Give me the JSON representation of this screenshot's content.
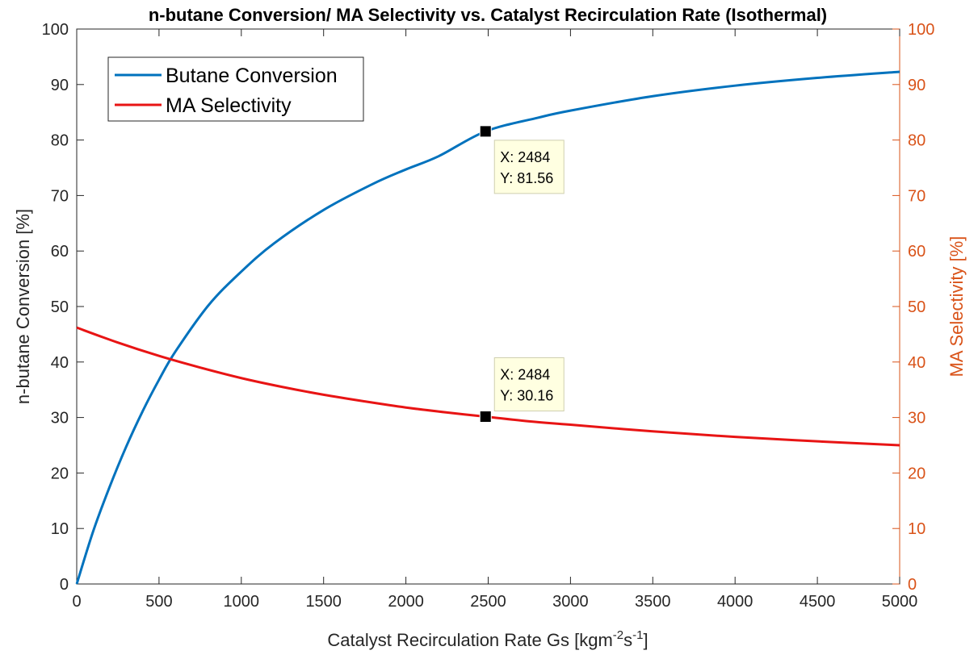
{
  "chart_data": {
    "type": "line",
    "title": "n-butane Conversion/ MA Selectivity vs. Catalyst Recirculation Rate (Isothermal)",
    "xlabel": "Catalyst Recirculation Rate Gs [kgm",
    "xlabel_sup1": "-2",
    "xlabel_mid": "s",
    "xlabel_sup2": "-1",
    "xlabel_end": "]",
    "ylabel_left": "n-butane Conversion [%]",
    "ylabel_right": "MA Selectivity [%]",
    "xlim": [
      0,
      5000
    ],
    "ylim_left": [
      0,
      100
    ],
    "ylim_right": [
      0,
      100
    ],
    "x_ticks": [
      0,
      500,
      1000,
      1500,
      2000,
      2500,
      3000,
      3500,
      4000,
      4500,
      5000
    ],
    "y_ticks": [
      0,
      10,
      20,
      30,
      40,
      50,
      60,
      70,
      80,
      90,
      100
    ],
    "grid": false,
    "legend_position": "top-left",
    "colors": {
      "butane": "#0072BD",
      "selectivity": "#E81414",
      "right_axis": "#D95319"
    },
    "series": [
      {
        "name": "Butane Conversion",
        "axis": "left",
        "x": [
          0,
          100,
          200,
          300,
          400,
          500,
          600,
          800,
          1000,
          1200,
          1500,
          1800,
          2000,
          2200,
          2484,
          2800,
          3000,
          3500,
          4000,
          4500,
          5000
        ],
        "y": [
          0,
          9.5,
          17.5,
          24.7,
          31.1,
          36.8,
          41.9,
          50.2,
          56.3,
          61.4,
          67.4,
          72.1,
          74.7,
          77.1,
          81.56,
          84.0,
          85.3,
          87.9,
          89.8,
          91.2,
          92.3
        ]
      },
      {
        "name": "MA Selectivity",
        "axis": "right",
        "x": [
          0,
          250,
          500,
          750,
          1000,
          1250,
          1500,
          1750,
          2000,
          2250,
          2484,
          2750,
          3000,
          3500,
          4000,
          4500,
          5000
        ],
        "y": [
          46.2,
          43.5,
          41.1,
          39.0,
          37.1,
          35.5,
          34.1,
          32.9,
          31.8,
          30.9,
          30.16,
          29.3,
          28.7,
          27.5,
          26.5,
          25.7,
          25.0
        ]
      }
    ],
    "datatips": [
      {
        "series": "Butane Conversion",
        "x": 2484,
        "y": 81.56,
        "label_x": "X: 2484",
        "label_y": "Y: 81.56"
      },
      {
        "series": "MA Selectivity",
        "x": 2484,
        "y": 30.16,
        "label_x": "X: 2484",
        "label_y": "Y: 30.16"
      }
    ]
  }
}
